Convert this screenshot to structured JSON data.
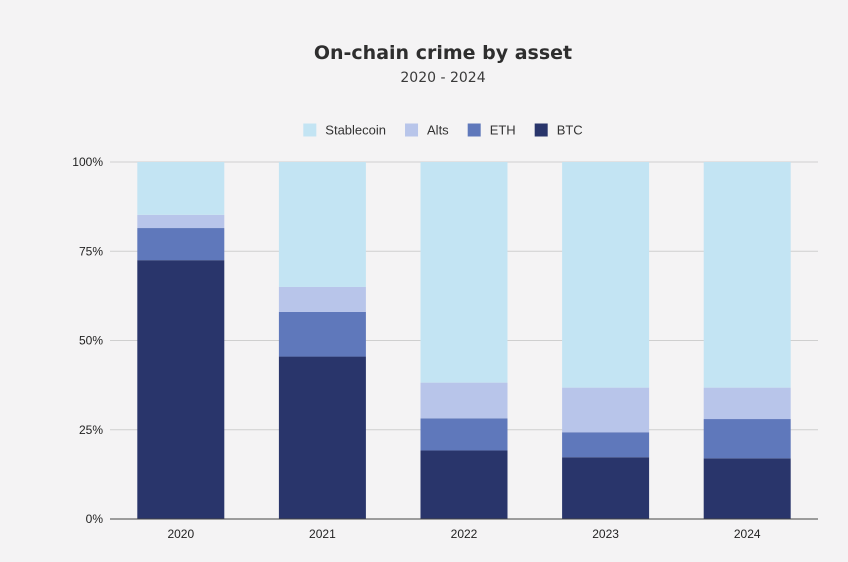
{
  "chart_data": {
    "type": "bar",
    "stacked": true,
    "title": "On-chain crime by asset",
    "subtitle": "2020 - 2024",
    "xlabel": "",
    "ylabel": "",
    "categories": [
      "2020",
      "2021",
      "2022",
      "2023",
      "2024"
    ],
    "ylim": [
      0,
      100
    ],
    "y_ticks": [
      "0%",
      "25%",
      "50%",
      "75%",
      "100%"
    ],
    "y_tick_values": [
      0,
      25,
      50,
      75,
      100
    ],
    "grid": true,
    "legend_position": "top-center",
    "series": [
      {
        "name": "BTC",
        "color": "#29356b",
        "values": [
          72.5,
          45.5,
          19.2,
          17.3,
          17.0
        ]
      },
      {
        "name": "ETH",
        "color": "#5f78bb",
        "values": [
          9.0,
          12.5,
          9.0,
          7.0,
          11.0
        ]
      },
      {
        "name": "Alts",
        "color": "#b8c5ea",
        "values": [
          3.7,
          7.0,
          10.0,
          12.5,
          8.8
        ]
      },
      {
        "name": "Stablecoin",
        "color": "#c3e4f3",
        "values": [
          14.8,
          35.0,
          61.8,
          63.2,
          63.2
        ]
      }
    ],
    "legend_order": [
      "Stablecoin",
      "Alts",
      "ETH",
      "BTC"
    ]
  }
}
